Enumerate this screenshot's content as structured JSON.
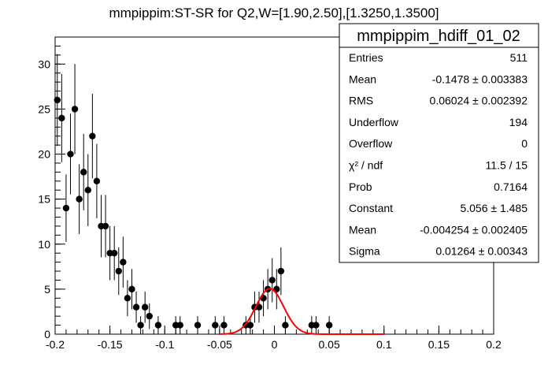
{
  "chart_data": {
    "type": "scatter",
    "title": "mmpippim:ST-SR for Q2,W=[1.90,2.50],[1.3250,1.3500]",
    "xlabel": "",
    "ylabel": "",
    "xlim": [
      -0.2,
      0.2
    ],
    "ylim": [
      0,
      33
    ],
    "x_ticks": [
      "-0.2",
      "-0.15",
      "-0.1",
      "-0.05",
      "0",
      "0.05",
      "0.1",
      "0.15",
      "0.2"
    ],
    "x_tick_values": [
      -0.2,
      -0.15,
      -0.1,
      -0.05,
      0,
      0.05,
      0.1,
      0.15,
      0.2
    ],
    "y_ticks": [
      "0",
      "5",
      "10",
      "15",
      "20",
      "25",
      "30"
    ],
    "y_tick_values": [
      0,
      5,
      10,
      15,
      20,
      25,
      30
    ],
    "grid": false,
    "legend": "none",
    "series": [
      {
        "kind": "points-with-errors",
        "color": "#000000",
        "x": [
          -0.198,
          -0.194,
          -0.19,
          -0.186,
          -0.182,
          -0.178,
          -0.174,
          -0.17,
          -0.166,
          -0.162,
          -0.158,
          -0.154,
          -0.15,
          -0.146,
          -0.142,
          -0.138,
          -0.134,
          -0.13,
          -0.126,
          -0.122,
          -0.118,
          -0.114,
          -0.106,
          -0.09,
          -0.086,
          -0.07,
          -0.054,
          -0.046,
          -0.026,
          -0.022,
          -0.018,
          -0.014,
          -0.01,
          -0.006,
          -0.002,
          0.002,
          0.006,
          0.01,
          0.034,
          0.038,
          0.05
        ],
        "values": [
          26,
          24,
          14,
          20,
          25,
          15,
          18,
          16,
          22,
          17,
          12,
          12,
          9,
          9,
          7,
          8,
          4,
          5,
          3,
          1,
          3,
          2,
          1,
          1,
          1,
          1,
          1,
          1,
          1,
          1,
          3,
          3,
          4,
          5,
          6,
          5,
          7,
          1,
          1,
          1,
          1
        ]
      },
      {
        "kind": "gaussian-fit",
        "color": "#ff0000",
        "constant": 5.056,
        "mean": -0.004254,
        "sigma": 0.01264,
        "x_range": [
          -0.05,
          0.1
        ]
      }
    ]
  },
  "stats_box": {
    "title": "mmpippim_hdiff_01_02",
    "rows": [
      {
        "label": "Entries",
        "value": "511"
      },
      {
        "label": "Mean",
        "value": "-0.1478 ± 0.003383"
      },
      {
        "label": "RMS",
        "value": "0.06024 ± 0.002392"
      },
      {
        "label": "Underflow",
        "value": "194"
      },
      {
        "label": "Overflow",
        "value": "0"
      },
      {
        "label": "χ² / ndf",
        "value": "11.5 / 15"
      },
      {
        "label": "Prob",
        "value": "0.7164"
      },
      {
        "label": "Constant",
        "value": "5.056 ± 1.485"
      },
      {
        "label": "Mean",
        "value": "-0.004254 ± 0.002405"
      },
      {
        "label": "Sigma",
        "value": "0.01264 ± 0.00343"
      }
    ]
  }
}
